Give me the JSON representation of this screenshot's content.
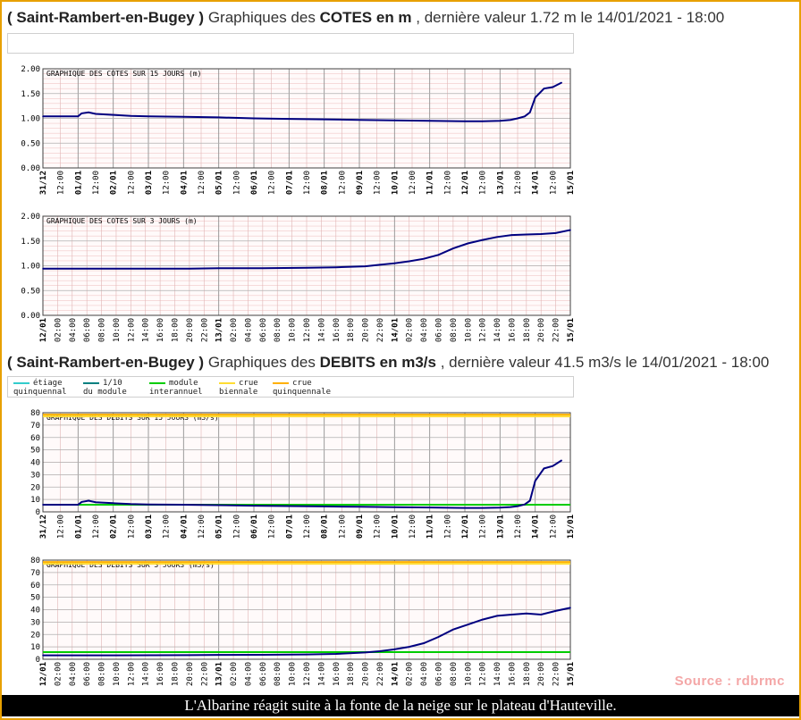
{
  "section1": {
    "station": "( Saint-Rambert-en-Bugey )",
    "prefix": "Graphiques des",
    "measure": "COTES en m",
    "suffix": ", dernière valeur 1.72 m le 14/01/2021 - 18:00"
  },
  "section2": {
    "station": "( Saint-Rambert-en-Bugey )",
    "prefix": "Graphiques des",
    "measure": "DEBITS en m3/s",
    "suffix": ", dernière valeur 41.5 m3/s le 14/01/2021 - 18:00"
  },
  "legend": [
    {
      "l1": "étiage",
      "l2": "quinquennal",
      "color": "#33cccc"
    },
    {
      "l1": "1/10",
      "l2": "du module",
      "color": "#008080"
    },
    {
      "l1": "module",
      "l2": "interannuel",
      "color": "#00cc00"
    },
    {
      "l1": "crue",
      "l2": "biennale",
      "color": "#ffdd33"
    },
    {
      "l1": "crue",
      "l2": "quinquennale",
      "color": "#ffb000"
    }
  ],
  "source": "Source : rdbrmc",
  "caption": "L'Albarine réagit suite à la fonte de la neige sur le plateau d'Hauteville.",
  "chart_data": [
    {
      "type": "line",
      "title": "GRAPHIQUE DES COTES SUR 15 JOURS (m)",
      "ylim": [
        0,
        2
      ],
      "yticks": [
        "0.00",
        "0.50",
        "1.00",
        "1.50",
        "2.00"
      ],
      "x_ticks": [
        "31/12",
        "12:00",
        "01/01",
        "12:00",
        "02/01",
        "12:00",
        "03/01",
        "12:00",
        "04/01",
        "12:00",
        "05/01",
        "12:00",
        "06/01",
        "12:00",
        "07/01",
        "12:00",
        "08/01",
        "12:00",
        "09/01",
        "12:00",
        "10/01",
        "12:00",
        "11/01",
        "12:00",
        "12/01",
        "12:00",
        "13/01",
        "12:00",
        "14/01",
        "12:00",
        "15/01"
      ],
      "x": [
        0,
        1,
        1.1,
        1.3,
        1.5,
        2,
        2.5,
        3,
        4,
        5,
        6,
        7,
        8,
        9,
        10,
        11,
        12,
        12.5,
        13,
        13.3,
        13.5,
        13.7,
        13.85,
        14,
        14.25,
        14.5,
        14.75
      ],
      "values": [
        1.04,
        1.04,
        1.1,
        1.12,
        1.09,
        1.07,
        1.05,
        1.04,
        1.03,
        1.02,
        1.0,
        0.99,
        0.98,
        0.97,
        0.96,
        0.95,
        0.94,
        0.94,
        0.95,
        0.97,
        1.0,
        1.04,
        1.12,
        1.42,
        1.6,
        1.63,
        1.72
      ],
      "grid": true
    },
    {
      "type": "line",
      "title": "GRAPHIQUE DES COTES SUR 3 JOURS (m)",
      "ylim": [
        0,
        2
      ],
      "yticks": [
        "0.00",
        "0.50",
        "1.00",
        "1.50",
        "2.00"
      ],
      "x_ticks": [
        "12/01",
        "02:00",
        "04:00",
        "06:00",
        "08:00",
        "10:00",
        "12:00",
        "14:00",
        "16:00",
        "18:00",
        "20:00",
        "22:00",
        "13/01",
        "02:00",
        "04:00",
        "06:00",
        "08:00",
        "10:00",
        "12:00",
        "14:00",
        "16:00",
        "18:00",
        "20:00",
        "22:00",
        "14/01",
        "02:00",
        "04:00",
        "06:00",
        "08:00",
        "10:00",
        "12:00",
        "14:00",
        "16:00",
        "18:00",
        "20:00",
        "22:00",
        "15/01"
      ],
      "x": [
        0,
        10,
        20,
        24,
        30,
        36,
        40,
        44,
        46,
        48,
        50,
        52,
        54,
        56,
        58,
        60,
        62,
        64,
        66,
        68,
        70,
        72
      ],
      "values": [
        0.94,
        0.94,
        0.94,
        0.95,
        0.95,
        0.96,
        0.97,
        0.99,
        1.02,
        1.05,
        1.09,
        1.14,
        1.22,
        1.35,
        1.45,
        1.52,
        1.58,
        1.62,
        1.63,
        1.64,
        1.66,
        1.72
      ],
      "grid": true
    },
    {
      "type": "line",
      "title": "GRAPHIQUE DES DEBITS SUR 15 JOURS (m3/s)",
      "ylim": [
        0,
        80
      ],
      "yticks": [
        "0",
        "10",
        "20",
        "30",
        "40",
        "50",
        "60",
        "70",
        "80"
      ],
      "x_ticks": [
        "31/12",
        "12:00",
        "01/01",
        "12:00",
        "02/01",
        "12:00",
        "03/01",
        "12:00",
        "04/01",
        "12:00",
        "05/01",
        "12:00",
        "06/01",
        "12:00",
        "07/01",
        "12:00",
        "08/01",
        "12:00",
        "09/01",
        "12:00",
        "10/01",
        "12:00",
        "11/01",
        "12:00",
        "12/01",
        "12:00",
        "13/01",
        "12:00",
        "14/01",
        "12:00",
        "15/01"
      ],
      "x": [
        0,
        1,
        1.1,
        1.3,
        1.5,
        2,
        2.5,
        3,
        4,
        5,
        6,
        7,
        8,
        9,
        10,
        11,
        12,
        12.5,
        13,
        13.3,
        13.5,
        13.7,
        13.85,
        14,
        14.25,
        14.5,
        14.75
      ],
      "values": [
        5.8,
        5.8,
        8,
        9,
        7.8,
        7,
        6.3,
        6,
        5.8,
        5.4,
        5,
        4.7,
        4.4,
        4.1,
        3.8,
        3.5,
        3.2,
        3.2,
        3.4,
        3.9,
        4.6,
        6,
        9,
        25,
        35,
        37,
        41.5
      ],
      "thresholds": [
        5.8,
        77,
        78.5
      ],
      "grid": true
    },
    {
      "type": "line",
      "title": "GRAPHIQUE DES DEBITS SUR 3 JOURS (m3/s)",
      "ylim": [
        0,
        80
      ],
      "yticks": [
        "0",
        "10",
        "20",
        "30",
        "40",
        "50",
        "60",
        "70",
        "80"
      ],
      "x_ticks": [
        "12/01",
        "02:00",
        "04:00",
        "06:00",
        "08:00",
        "10:00",
        "12:00",
        "14:00",
        "16:00",
        "18:00",
        "20:00",
        "22:00",
        "13/01",
        "02:00",
        "04:00",
        "06:00",
        "08:00",
        "10:00",
        "12:00",
        "14:00",
        "16:00",
        "18:00",
        "20:00",
        "22:00",
        "14/01",
        "02:00",
        "04:00",
        "06:00",
        "08:00",
        "10:00",
        "12:00",
        "14:00",
        "16:00",
        "18:00",
        "20:00",
        "22:00",
        "15/01"
      ],
      "x": [
        0,
        10,
        20,
        24,
        30,
        36,
        40,
        44,
        46,
        48,
        50,
        52,
        54,
        56,
        58,
        60,
        62,
        64,
        66,
        68,
        70,
        72
      ],
      "values": [
        3.2,
        3.2,
        3.3,
        3.5,
        3.6,
        3.9,
        4.3,
        5.5,
        6.5,
        8,
        10,
        13,
        18,
        24,
        28,
        32,
        35,
        36,
        37,
        36,
        39,
        41.5
      ],
      "thresholds": [
        5.8,
        77,
        78.5
      ],
      "grid": true
    }
  ]
}
